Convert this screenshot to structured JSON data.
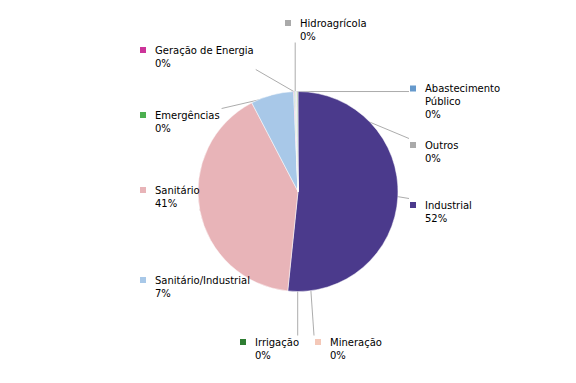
{
  "chart_data": {
    "type": "pie",
    "categories": [
      "Industrial",
      "Sanitário",
      "Sanitário/Industrial",
      "Geração de Energia",
      "Emergências",
      "Hidroagrícola",
      "Abastecimento\nPúblico",
      "Outros",
      "Mineração",
      "Irrigação"
    ],
    "values": [
      52,
      41,
      7,
      0.1,
      0.1,
      0.1,
      0.1,
      0.1,
      0.1,
      0.1
    ],
    "value_labels": [
      "52%",
      "41%",
      "7%",
      "0%",
      "0%",
      "0%",
      "0%",
      "0%",
      "0%",
      "0%"
    ],
    "colors": [
      "#4B3A8C",
      "#E8B4B8",
      "#A8C8E8",
      "#CC3399",
      "#4CAF50",
      "#AAAAAA",
      "#6699CC",
      "#AAAAAA",
      "#F4C8B8",
      "#2E7D32"
    ],
    "data_labels": true
  }
}
